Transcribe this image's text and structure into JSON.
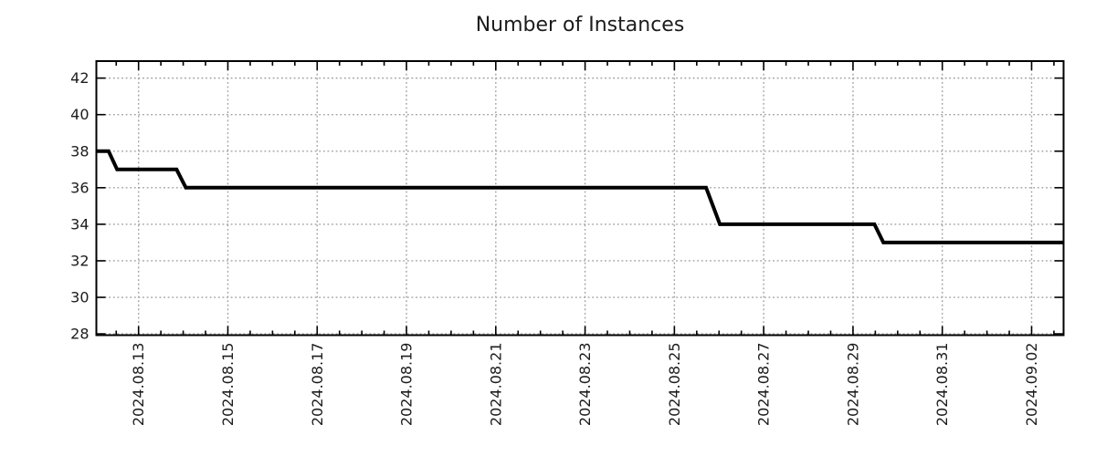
{
  "chart_data": {
    "type": "line",
    "line_style": "step",
    "title": "Number of Instances",
    "xlabel": "",
    "ylabel": "",
    "legend": null,
    "grid": true,
    "colors": {
      "line": "#000000",
      "grid": "#a0a0a0",
      "axis": "#000000",
      "text": "#1c1c1c",
      "background": "#ffffff"
    },
    "x_axis": {
      "unit": "days since 2024-08-12 00:00",
      "lim": [
        0.055,
        21.716
      ],
      "minor_tick_step": 0.5,
      "major_ticks": [
        {
          "d": 1,
          "label": "2024.08.13"
        },
        {
          "d": 3,
          "label": "2024.08.15"
        },
        {
          "d": 5,
          "label": "2024.08.17"
        },
        {
          "d": 7,
          "label": "2024.08.19"
        },
        {
          "d": 9,
          "label": "2024.08.21"
        },
        {
          "d": 11,
          "label": "2024.08.23"
        },
        {
          "d": 13,
          "label": "2024.08.25"
        },
        {
          "d": 15,
          "label": "2024.08.27"
        },
        {
          "d": 17,
          "label": "2024.08.29"
        },
        {
          "d": 19,
          "label": "2024.08.31"
        },
        {
          "d": 21,
          "label": "2024.09.02"
        }
      ]
    },
    "y_axis": {
      "lim": [
        27.93,
        42.93
      ],
      "ticks": [
        28,
        30,
        32,
        34,
        36,
        38,
        40,
        42
      ]
    },
    "series": [
      {
        "name": "Number of Instances",
        "color": "#000000",
        "points": [
          [
            0.055,
            38
          ],
          [
            0.33,
            38
          ],
          [
            0.52,
            37
          ],
          [
            1.85,
            37
          ],
          [
            2.06,
            36
          ],
          [
            13.71,
            36
          ],
          [
            14.02,
            34
          ],
          [
            17.48,
            34
          ],
          [
            17.68,
            33
          ],
          [
            21.716,
            33
          ]
        ]
      }
    ],
    "plateaus": [
      {
        "value": 38,
        "from": "2024-08-12 ~01:00",
        "until": "2024-08-12 ~08:00"
      },
      {
        "value": 37,
        "from": "2024-08-12 ~12:30",
        "until": "2024-08-13 ~20:30"
      },
      {
        "value": 36,
        "from": "2024-08-14 ~01:30",
        "until": "2024-08-25 ~17:00"
      },
      {
        "value": 34,
        "from": "2024-08-26 ~00:30",
        "until": "2024-08-29 ~11:30"
      },
      {
        "value": 33,
        "from": "2024-08-29 ~16:30",
        "until": "2024-09-02 ~17:00"
      }
    ]
  }
}
